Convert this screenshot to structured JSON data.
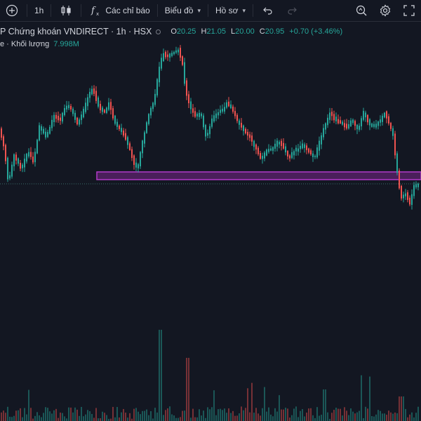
{
  "toolbar": {
    "add_icon": "plus-circle-icon",
    "interval": "1h",
    "chart_type_icon": "candles-icon",
    "indicators_label": "Các chỉ báo",
    "chart_label": "Biểu đồ",
    "profile_label": "Hồ sơ",
    "undo_icon": "undo-icon",
    "redo_icon": "redo-icon",
    "search_icon": "zoom-search-icon",
    "settings_icon": "gear-icon",
    "fullscreen_icon": "fullscreen-icon"
  },
  "legend": {
    "symbol": "P Chứng khoán VNDIRECT · 1h · HSX",
    "o_label": "O",
    "o_value": "20.25",
    "h_label": "H",
    "h_value": "21.05",
    "l_label": "L",
    "l_value": "20.00",
    "c_label": "C",
    "c_value": "20.95",
    "change": "+0.70 (+3.46%)",
    "volume_label": "e · Khối lượng",
    "volume_value": "7.998M"
  },
  "colors": {
    "up": "#26a69a",
    "down": "#ef5350",
    "zone_border": "#b23ac9",
    "zone_fill": "#4a1f5a",
    "background": "#131722"
  }
}
